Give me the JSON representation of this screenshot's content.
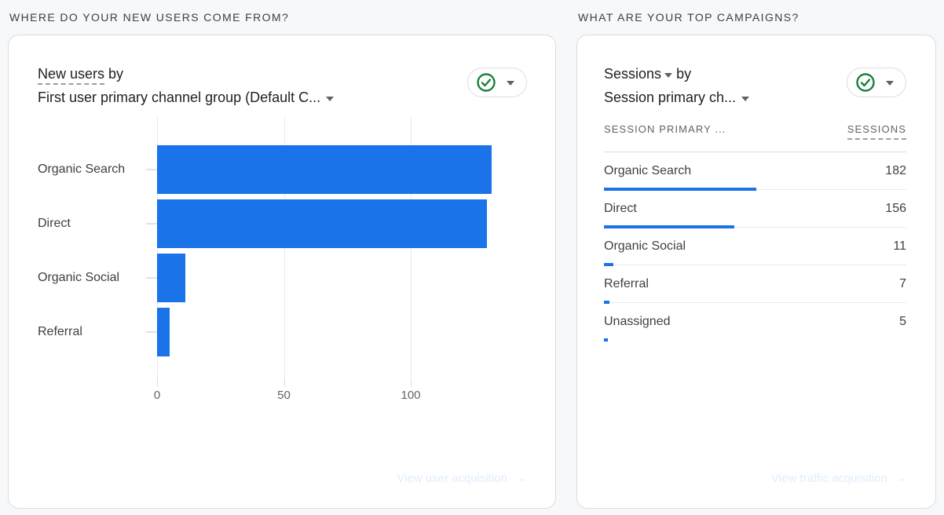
{
  "colors": {
    "accent_blue": "#1a73e8",
    "success_green": "#188038",
    "background": "#f6f8fa"
  },
  "left_card": {
    "section_title": "WHERE DO YOUR NEW USERS COME FROM?",
    "metric_label": "New users",
    "by_label": "by",
    "dimension_label": "First user primary channel group (Default C...",
    "status_icon": "check-circle-icon",
    "footer_link_label": "View user acquisition",
    "footer_link_arrow": "→"
  },
  "right_card": {
    "section_title": "WHAT ARE YOUR TOP CAMPAIGNS?",
    "metric_label": "Sessions",
    "by_label": "by",
    "dimension_label": "Session primary ch...",
    "status_icon": "check-circle-icon",
    "footer_link_label": "View traffic acquisition",
    "footer_link_arrow": "→"
  },
  "chart_data": [
    {
      "type": "bar",
      "orientation": "horizontal",
      "title": "New users by First user primary channel group (Default C...",
      "categories": [
        "Organic Search",
        "Direct",
        "Organic Social",
        "Referral"
      ],
      "values": [
        132,
        130,
        11,
        5
      ],
      "xlabel": "New users",
      "ylabel": "First user primary channel group",
      "x_ticks": [
        0,
        50,
        100
      ],
      "xlim": [
        0,
        152
      ],
      "grid": true,
      "bar_color": "#1a73e8",
      "legend": "none"
    },
    {
      "type": "table",
      "title": "Sessions by Session primary ch...",
      "columns": [
        "SESSION PRIMARY ...",
        "SESSIONS"
      ],
      "rows": [
        {
          "label": "Organic Search",
          "value": 182
        },
        {
          "label": "Direct",
          "value": 156
        },
        {
          "label": "Organic Social",
          "value": 11
        },
        {
          "label": "Referral",
          "value": 7
        },
        {
          "label": "Unassigned",
          "value": 5
        }
      ],
      "max_value": 182,
      "mini_bar_color": "#1a73e8",
      "mini_bar_max_fraction": 0.504
    }
  ]
}
